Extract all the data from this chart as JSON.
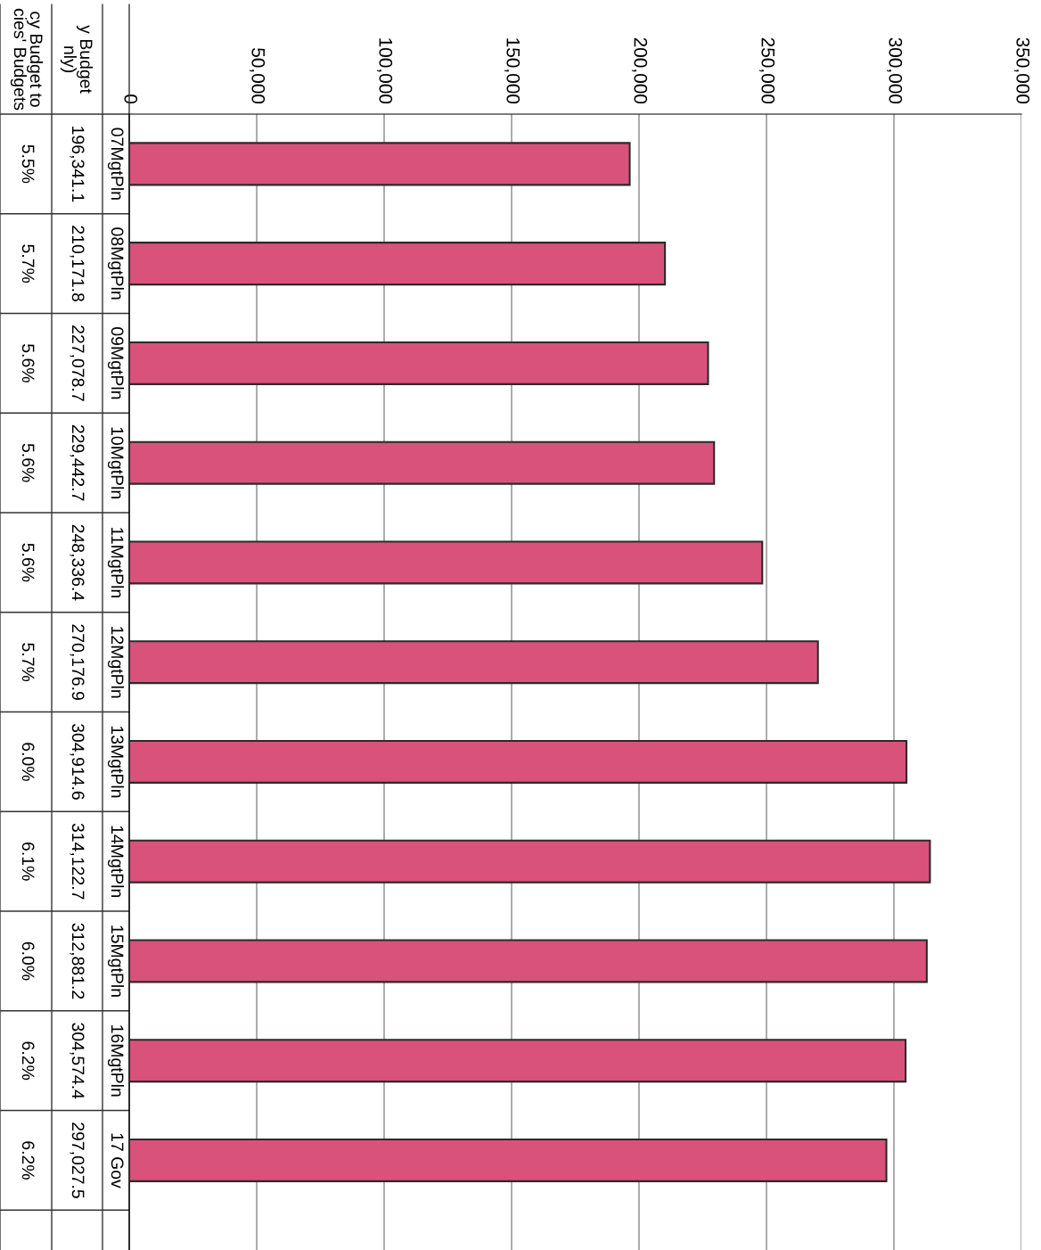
{
  "chart_data": {
    "type": "bar",
    "orientation": "horizontal",
    "categories": [
      "07MgtPln",
      "08MgtPln",
      "09MgtPln",
      "10MgtPln",
      "11MgtPln",
      "12MgtPln",
      "13MgtPln",
      "14MgtPln",
      "15MgtPln",
      "16MgtPln",
      "17 Gov"
    ],
    "values": [
      196341.1,
      210171.8,
      227078.7,
      229442.7,
      248336.4,
      270176.9,
      304914.6,
      314122.7,
      312881.2,
      304574.4,
      297027.5
    ],
    "value_labels": [
      "196,341.1",
      "210,171.8",
      "227,078.7",
      "229,442.7",
      "248,336.4",
      "270,176.9",
      "304,914.6",
      "314,122.7",
      "312,881.2",
      "304,574.4",
      "297,027.5"
    ],
    "color": "#d9527c",
    "xlim": [
      0,
      350000
    ],
    "xticks": [
      0,
      {
        "value": 50000,
        "label": "50,000"
      },
      {
        "value": 100000,
        "label": "100,000"
      },
      {
        "value": 150000,
        "label": "150,000"
      },
      {
        "value": 200000,
        "label": "200,000"
      },
      {
        "value": 250000,
        "label": "250,000"
      },
      {
        "value": 300000,
        "label": "300,000"
      },
      {
        "value": 350000,
        "label": "350,000"
      }
    ],
    "grid": "x",
    "annotations": [
      "y Budget\nnly)",
      "cy Budget to\ncies' Budgets",
      "5.5%",
      "5.7%",
      "5.6%",
      "5.6%",
      "5.6%",
      "5.7%",
      "6.0%",
      "6.1%",
      "6.0%",
      "6.2%",
      "6.2%"
    ]
  }
}
